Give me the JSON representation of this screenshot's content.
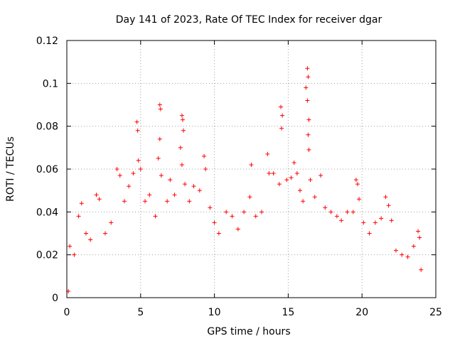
{
  "chart_data": {
    "type": "scatter",
    "title": "Day 141 of 2023, Rate Of TEC Index for receiver dgar",
    "xlabel": "GPS time / hours",
    "ylabel": "ROTI / TECUs",
    "xlim": [
      0,
      25
    ],
    "ylim": [
      0,
      0.12
    ],
    "x_ticks": [
      "0",
      "5",
      "10",
      "15",
      "20",
      "25"
    ],
    "y_ticks": [
      "0",
      "0.02",
      "0.04",
      "0.06",
      "0.08",
      "0.1",
      "0.12"
    ],
    "x_tick_values": [
      0,
      5,
      10,
      15,
      20,
      25
    ],
    "y_tick_values": [
      0,
      0.02,
      0.04,
      0.06,
      0.08,
      0.1,
      0.12
    ],
    "grid": true,
    "legend": "none",
    "marker": "plus",
    "color": "#ff0000",
    "series": [
      {
        "points": [
          [
            0.1,
            0.003
          ],
          [
            0.2,
            0.024
          ],
          [
            0.5,
            0.02
          ],
          [
            0.8,
            0.038
          ],
          [
            1.0,
            0.044
          ],
          [
            1.3,
            0.03
          ],
          [
            1.6,
            0.027
          ],
          [
            2.0,
            0.048
          ],
          [
            2.2,
            0.046
          ],
          [
            2.6,
            0.03
          ],
          [
            3.0,
            0.035
          ],
          [
            3.4,
            0.06
          ],
          [
            3.6,
            0.057
          ],
          [
            3.9,
            0.045
          ],
          [
            4.2,
            0.052
          ],
          [
            4.5,
            0.058
          ],
          [
            4.75,
            0.082
          ],
          [
            4.8,
            0.078
          ],
          [
            4.85,
            0.064
          ],
          [
            5.0,
            0.06
          ],
          [
            5.3,
            0.045
          ],
          [
            5.6,
            0.048
          ],
          [
            6.0,
            0.038
          ],
          [
            6.3,
            0.09
          ],
          [
            6.35,
            0.088
          ],
          [
            6.3,
            0.074
          ],
          [
            6.4,
            0.057
          ],
          [
            6.2,
            0.065
          ],
          [
            6.8,
            0.045
          ],
          [
            7.0,
            0.055
          ],
          [
            7.3,
            0.048
          ],
          [
            7.8,
            0.085
          ],
          [
            7.85,
            0.083
          ],
          [
            7.9,
            0.078
          ],
          [
            7.7,
            0.07
          ],
          [
            7.8,
            0.062
          ],
          [
            8.0,
            0.053
          ],
          [
            8.3,
            0.045
          ],
          [
            8.6,
            0.052
          ],
          [
            9.0,
            0.05
          ],
          [
            9.3,
            0.066
          ],
          [
            9.4,
            0.06
          ],
          [
            9.7,
            0.042
          ],
          [
            10.0,
            0.035
          ],
          [
            10.3,
            0.03
          ],
          [
            10.8,
            0.04
          ],
          [
            11.2,
            0.038
          ],
          [
            11.6,
            0.032
          ],
          [
            12.0,
            0.04
          ],
          [
            12.4,
            0.047
          ],
          [
            12.5,
            0.062
          ],
          [
            12.8,
            0.038
          ],
          [
            13.2,
            0.04
          ],
          [
            13.6,
            0.067
          ],
          [
            13.7,
            0.058
          ],
          [
            14.0,
            0.058
          ],
          [
            14.4,
            0.053
          ],
          [
            14.5,
            0.089
          ],
          [
            14.55,
            0.079
          ],
          [
            14.6,
            0.085
          ],
          [
            14.9,
            0.055
          ],
          [
            15.2,
            0.056
          ],
          [
            15.4,
            0.063
          ],
          [
            15.6,
            0.058
          ],
          [
            15.8,
            0.05
          ],
          [
            16.0,
            0.045
          ],
          [
            16.2,
            0.098
          ],
          [
            16.3,
            0.107
          ],
          [
            16.35,
            0.103
          ],
          [
            16.3,
            0.092
          ],
          [
            16.4,
            0.083
          ],
          [
            16.35,
            0.076
          ],
          [
            16.4,
            0.069
          ],
          [
            16.5,
            0.055
          ],
          [
            16.8,
            0.047
          ],
          [
            17.2,
            0.057
          ],
          [
            17.5,
            0.042
          ],
          [
            17.9,
            0.04
          ],
          [
            18.3,
            0.038
          ],
          [
            18.6,
            0.036
          ],
          [
            19.0,
            0.04
          ],
          [
            19.4,
            0.04
          ],
          [
            19.6,
            0.055
          ],
          [
            19.7,
            0.053
          ],
          [
            19.8,
            0.046
          ],
          [
            20.1,
            0.035
          ],
          [
            20.5,
            0.03
          ],
          [
            20.9,
            0.035
          ],
          [
            21.3,
            0.037
          ],
          [
            21.6,
            0.047
          ],
          [
            21.8,
            0.043
          ],
          [
            22.0,
            0.036
          ],
          [
            22.3,
            0.022
          ],
          [
            22.7,
            0.02
          ],
          [
            23.1,
            0.019
          ],
          [
            23.5,
            0.024
          ],
          [
            23.8,
            0.031
          ],
          [
            23.9,
            0.028
          ],
          [
            24.0,
            0.013
          ]
        ]
      }
    ]
  }
}
